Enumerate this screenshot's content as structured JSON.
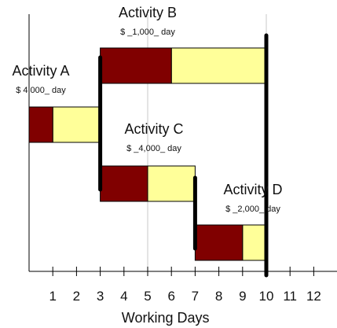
{
  "chart_data": {
    "type": "gantt",
    "xlabel": "Working Days",
    "xlim": [
      0,
      13
    ],
    "x_ticks": [
      1,
      2,
      3,
      4,
      5,
      6,
      7,
      8,
      9,
      10,
      11,
      12
    ],
    "grid_x": [
      5,
      10
    ],
    "milestones": [
      3,
      7,
      10
    ],
    "colors": {
      "critical": "#800000",
      "slack": "#ffff99",
      "grid": "#c8c8c8",
      "line": "#000000"
    },
    "activities": [
      {
        "name": "Activity A",
        "rate": "$ 4,000_ day",
        "start": 0,
        "duration": 1,
        "slack": 2
      },
      {
        "name": "Activity B",
        "rate": "$ _1,000_ day",
        "start": 3,
        "duration": 3,
        "slack": 4
      },
      {
        "name": "Activity C",
        "rate": "$ _4,000_ day",
        "start": 3,
        "duration": 2,
        "slack": 2
      },
      {
        "name": "Activity D",
        "rate": "$ _2,000_ day",
        "start": 7,
        "duration": 2,
        "slack": 1
      }
    ]
  }
}
